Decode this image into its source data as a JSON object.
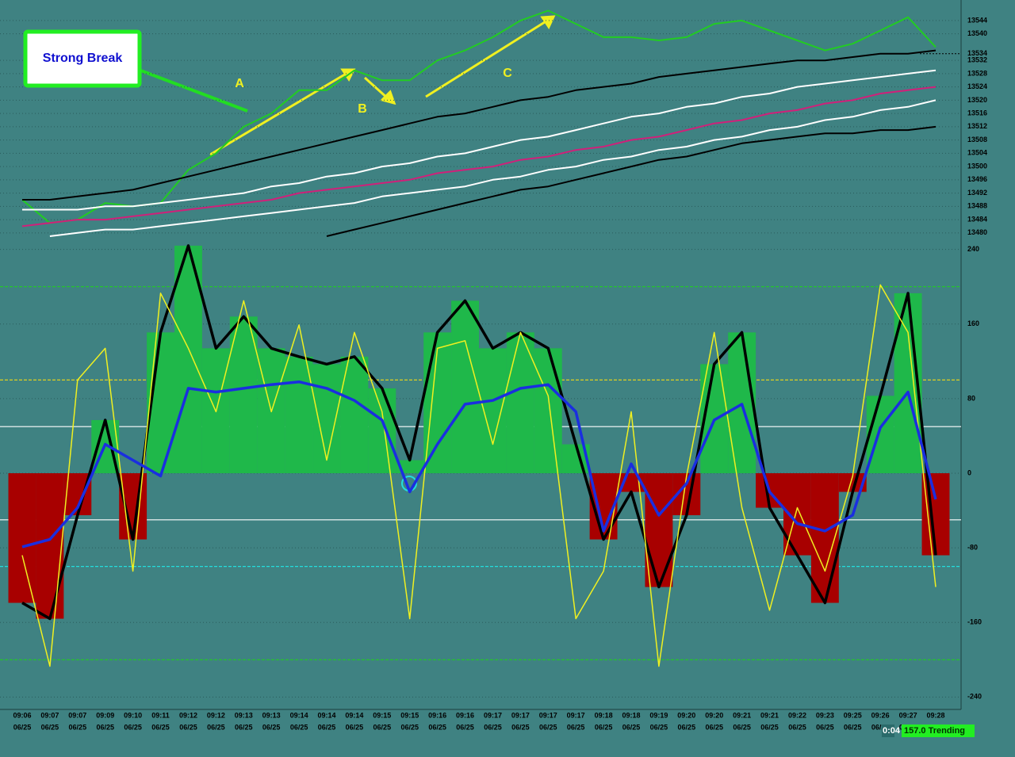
{
  "chart_data": [
    {
      "type": "line",
      "ylim": [
        13479,
        13549
      ],
      "yticks": [
        13484,
        13488,
        13492,
        13496,
        13500,
        13504,
        13508,
        13512,
        13516,
        13520,
        13524,
        13528,
        13532,
        13540,
        13544,
        13480
      ],
      "last_price": 13534,
      "grid": true,
      "annotations": [
        {
          "text": "Strong Break"
        },
        {
          "text": "A"
        },
        {
          "text": "B"
        },
        {
          "text": "C"
        }
      ],
      "series": [
        {
          "color": "#22cc22",
          "values": [
            13490,
            13483,
            13484,
            13489,
            13488,
            13489,
            13499,
            13504,
            13512,
            13516,
            13523,
            13523,
            13529,
            13526,
            13526,
            13532,
            13535,
            13539,
            13544,
            13547,
            13543,
            13539,
            13539,
            13538,
            13539,
            13543,
            13544,
            13541,
            13538,
            13535,
            13537,
            13541,
            13545,
            13536
          ]
        },
        {
          "color": "#000000",
          "values": [
            13490,
            13490,
            13491,
            13492,
            13493,
            13495,
            13497,
            13499,
            13501,
            13503,
            13505,
            13507,
            13509,
            13511,
            13513,
            13515,
            13516,
            13518,
            13520,
            13521,
            13523,
            13524,
            13525,
            13527,
            13528,
            13529,
            13530,
            13531,
            13532,
            13532,
            13533,
            13534,
            13534,
            13535
          ]
        },
        {
          "color": "#ffffff",
          "values": [
            13487,
            13487,
            13487,
            13488,
            13488,
            13489,
            13490,
            13491,
            13492,
            13494,
            13495,
            13497,
            13498,
            13500,
            13501,
            13503,
            13504,
            13506,
            13508,
            13509,
            13511,
            13513,
            13515,
            13516,
            13518,
            13519,
            13521,
            13522,
            13524,
            13525,
            13526,
            13527,
            13528,
            13529
          ]
        },
        {
          "color": "#d0207a",
          "values": [
            13482,
            13483,
            13484,
            13484,
            13485,
            13486,
            13487,
            13488,
            13489,
            13490,
            13492,
            13493,
            13494,
            13495,
            13496,
            13498,
            13499,
            13500,
            13502,
            13503,
            13505,
            13506,
            13508,
            13509,
            13511,
            13513,
            13514,
            13516,
            13517,
            13519,
            13520,
            13522,
            13523,
            13524
          ]
        },
        {
          "color": "#ffffff",
          "values": [
            null,
            13479,
            13480,
            13481,
            13481,
            13482,
            13483,
            13484,
            13485,
            13486,
            13487,
            13488,
            13489,
            13491,
            13492,
            13493,
            13494,
            13496,
            13497,
            13499,
            13500,
            13502,
            13503,
            13505,
            13506,
            13508,
            13509,
            13511,
            13512,
            13514,
            13515,
            13517,
            13518,
            13520
          ]
        },
        {
          "color": "#000000",
          "values": [
            null,
            null,
            null,
            null,
            null,
            null,
            null,
            null,
            null,
            null,
            null,
            13479,
            13481,
            13483,
            13485,
            13487,
            13489,
            13491,
            13493,
            13494,
            13496,
            13498,
            13500,
            13502,
            13503,
            13505,
            13507,
            13508,
            13509,
            13510,
            13510,
            13511,
            13511,
            13512
          ]
        }
      ]
    },
    {
      "type": "combo",
      "ylim": [
        -255,
        255
      ],
      "yticks": [
        240,
        160,
        80,
        0,
        -80,
        -160,
        -240
      ],
      "grid": true,
      "date_label": "06/25",
      "categories": [
        "09:06",
        "09:07",
        "09:07",
        "09:09",
        "09:10",
        "09:11",
        "09:12",
        "09:12",
        "09:13",
        "09:13",
        "09:14",
        "09:14",
        "09:14",
        "09:15",
        "09:15",
        "09:16",
        "09:16",
        "09:17",
        "09:17",
        "09:17",
        "09:17",
        "09:18",
        "09:18",
        "09:19",
        "09:20",
        "09:20",
        "09:21",
        "09:21",
        "09:22",
        "09:23",
        "09:25",
        "09:26",
        "09:27",
        "09:28"
      ],
      "levels": [
        {
          "value": 200,
          "color": "#22cc22"
        },
        {
          "value": 100,
          "color": "#e0d020"
        },
        {
          "value": 50,
          "color": "#ffffff"
        },
        {
          "value": -50,
          "color": "#ffffff"
        },
        {
          "value": -100,
          "color": "#22dddd"
        },
        {
          "value": -200,
          "color": "#22cc22"
        }
      ],
      "histogram": {
        "up_color": "#1fb84a",
        "down_color": "#a80000",
        "line_color": "#000000",
        "values": [
          -139,
          -156,
          -45,
          57,
          -71,
          151,
          244,
          134,
          168,
          134,
          125,
          117,
          125,
          91,
          14,
          151,
          185,
          134,
          151,
          134,
          31,
          -71,
          -20,
          -122,
          -45,
          117,
          151,
          -37,
          -88,
          -139,
          -20,
          83,
          193,
          -88
        ]
      },
      "series": [
        {
          "color": "#f0f020",
          "values": [
            -88,
            -207,
            100,
            134,
            -105,
            193,
            134,
            66,
            185,
            66,
            159,
            14,
            151,
            66,
            -156,
            134,
            142,
            31,
            151,
            83,
            -156,
            -105,
            66,
            -207,
            -3,
            151,
            -37,
            -147,
            -37,
            -105,
            -3,
            202,
            151,
            -122
          ]
        },
        {
          "color": "#1a2ee0",
          "values": [
            -79,
            -71,
            -37,
            31,
            14,
            -3,
            91,
            87,
            91,
            95,
            98,
            91,
            78,
            57,
            -20,
            31,
            74,
            78,
            91,
            95,
            66,
            -62,
            10,
            -45,
            -11,
            57,
            74,
            -20,
            -54,
            -62,
            -45,
            49,
            87,
            -28
          ]
        }
      ]
    }
  ],
  "status": {
    "time": "0:04",
    "text": "157.0 Trending"
  }
}
